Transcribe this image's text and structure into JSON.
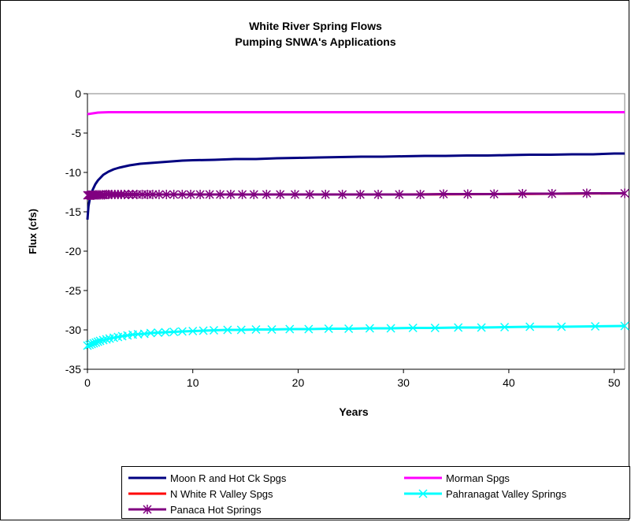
{
  "chart_data": {
    "type": "line",
    "title": "White River Spring Flows",
    "subtitle": "Pumping SNWA's Applications",
    "xlabel": "Years",
    "ylabel": "Flux (cfs)",
    "xlim": [
      0,
      51
    ],
    "ylim": [
      -35,
      0
    ],
    "xticks": [
      "0",
      "10",
      "20",
      "30",
      "40",
      "50"
    ],
    "yticks": [
      "0",
      "-5",
      "-10",
      "-15",
      "-20",
      "-25",
      "-30",
      "-35"
    ],
    "grid": false,
    "legend_position": "bottom",
    "series": [
      {
        "name": "Moon R and Hot Ck Spgs",
        "color": "#000080",
        "marker": "none",
        "x": [
          0,
          0.1,
          0.25,
          0.5,
          0.75,
          1,
          1.5,
          2,
          2.5,
          3,
          4,
          5,
          6,
          7,
          8,
          9,
          10,
          12,
          14,
          16,
          18,
          20,
          22,
          24,
          26,
          28,
          30,
          32,
          34,
          36,
          38,
          40,
          42,
          44,
          46,
          48,
          50,
          51
        ],
        "y": [
          -16,
          -14.3,
          -13.2,
          -12.2,
          -11.5,
          -11.0,
          -10.3,
          -9.9,
          -9.6,
          -9.4,
          -9.1,
          -8.9,
          -8.8,
          -8.7,
          -8.6,
          -8.5,
          -8.45,
          -8.4,
          -8.3,
          -8.3,
          -8.2,
          -8.15,
          -8.1,
          -8.05,
          -8.0,
          -8.0,
          -7.95,
          -7.9,
          -7.9,
          -7.85,
          -7.85,
          -7.8,
          -7.75,
          -7.75,
          -7.7,
          -7.7,
          -7.6,
          -7.6
        ]
      },
      {
        "name": "Morman Spgs",
        "color": "#FF00FF",
        "marker": "none",
        "x": [
          0,
          0.5,
          1,
          2,
          51
        ],
        "y": [
          -2.6,
          -2.5,
          -2.4,
          -2.35,
          -2.35
        ]
      },
      {
        "name": "N White R Valley Spgs",
        "color": "#FF0000",
        "marker": "none",
        "x": [
          0,
          1,
          5,
          10,
          20,
          30,
          40,
          45,
          51
        ],
        "y": [
          -12.8,
          -12.8,
          -12.8,
          -12.8,
          -12.8,
          -12.8,
          -12.75,
          -12.7,
          -12.65
        ]
      },
      {
        "name": "Pahranagat Valley Springs",
        "color": "#00FFFF",
        "marker": "x",
        "x": [
          0,
          0.2,
          0.4,
          0.6,
          0.8,
          1,
          1.2,
          1.5,
          1.8,
          2.1,
          2.5,
          2.9,
          3.3,
          3.8,
          4.3,
          4.8,
          5.4,
          6,
          6.7,
          7.4,
          8.2,
          9,
          10,
          11,
          12,
          13.3,
          14.6,
          16,
          17.5,
          19.2,
          21,
          22.9,
          24.8,
          26.8,
          28.8,
          30.9,
          33,
          35.2,
          37.4,
          39.6,
          42,
          45,
          48.2,
          51
        ],
        "y": [
          -32,
          -31.9,
          -31.8,
          -31.7,
          -31.6,
          -31.5,
          -31.4,
          -31.3,
          -31.2,
          -31.1,
          -31.0,
          -30.9,
          -30.8,
          -30.7,
          -30.6,
          -30.55,
          -30.5,
          -30.4,
          -30.35,
          -30.3,
          -30.25,
          -30.2,
          -30.15,
          -30.1,
          -30.05,
          -30.0,
          -30.0,
          -29.95,
          -29.95,
          -29.9,
          -29.9,
          -29.85,
          -29.85,
          -29.8,
          -29.8,
          -29.75,
          -29.75,
          -29.7,
          -29.7,
          -29.65,
          -29.6,
          -29.6,
          -29.55,
          -29.5
        ]
      },
      {
        "name": "Panaca Hot Springs",
        "color": "#800080",
        "marker": "asterisk",
        "x": [
          0,
          0.1,
          0.2,
          0.3,
          0.45,
          0.6,
          0.75,
          0.9,
          1.05,
          1.2,
          1.4,
          1.6,
          1.8,
          2.0,
          2.3,
          2.6,
          2.9,
          3.2,
          3.5,
          3.9,
          4.3,
          4.7,
          5.2,
          5.7,
          6.2,
          6.8,
          7.5,
          8.2,
          9,
          9.8,
          10.7,
          11.6,
          12.6,
          13.6,
          14.7,
          15.8,
          17,
          18.3,
          19.7,
          21.1,
          22.6,
          24.2,
          25.9,
          27.6,
          29.6,
          31.6,
          33.8,
          36.1,
          38.6,
          41.3,
          44.1,
          47.4,
          51
        ],
        "y": [
          -12.9,
          -12.9,
          -12.9,
          -12.9,
          -12.9,
          -12.9,
          -12.85,
          -12.85,
          -12.85,
          -12.85,
          -12.85,
          -12.85,
          -12.8,
          -12.8,
          -12.8,
          -12.8,
          -12.8,
          -12.8,
          -12.8,
          -12.8,
          -12.8,
          -12.8,
          -12.8,
          -12.8,
          -12.8,
          -12.8,
          -12.8,
          -12.8,
          -12.8,
          -12.8,
          -12.8,
          -12.8,
          -12.8,
          -12.8,
          -12.8,
          -12.8,
          -12.8,
          -12.8,
          -12.8,
          -12.8,
          -12.8,
          -12.8,
          -12.8,
          -12.8,
          -12.8,
          -12.8,
          -12.75,
          -12.75,
          -12.75,
          -12.7,
          -12.7,
          -12.65,
          -12.65
        ]
      }
    ]
  }
}
